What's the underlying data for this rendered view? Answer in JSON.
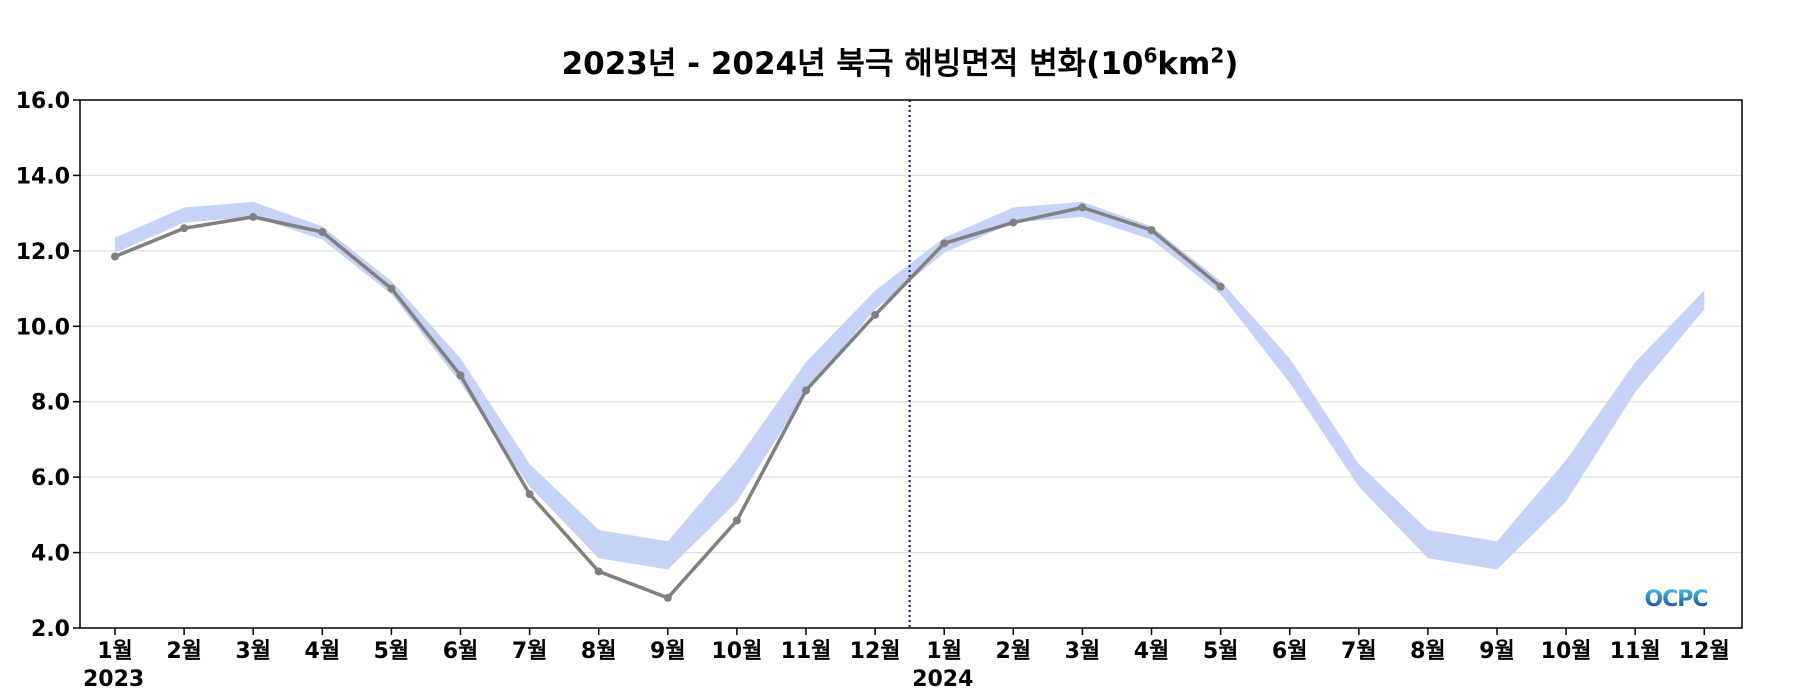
{
  "chart_data": {
    "type": "line",
    "title": {
      "prefix": "2023년 - 2024년 북극 해빙면적 변화(10",
      "exp1": "6",
      "mid": "km",
      "exp2": "2",
      "suffix": ")"
    },
    "xlabel": "",
    "ylabel": "",
    "ylim": [
      2.0,
      16.0
    ],
    "yticks": [
      "16.0",
      "14.0",
      "12.0",
      "10.0",
      "8.0",
      "6.0",
      "4.0",
      "2.0"
    ],
    "ytick_values": [
      16,
      14,
      12,
      10,
      8,
      6,
      4,
      2
    ],
    "categories": [
      "1월",
      "2월",
      "3월",
      "4월",
      "5월",
      "6월",
      "7월",
      "8월",
      "9월",
      "10월",
      "11월",
      "12월",
      "1월",
      "2월",
      "3월",
      "4월",
      "5월",
      "6월",
      "7월",
      "8월",
      "9월",
      "10월",
      "11월",
      "12월"
    ],
    "year_labels": [
      {
        "label": "2023",
        "index": 0
      },
      {
        "label": "2024",
        "index": 12
      }
    ],
    "divider_between": [
      11,
      12
    ],
    "grid": "horizontal",
    "climatology_band": {
      "color": "#c5d3f8",
      "upper": [
        12.35,
        13.15,
        13.3,
        12.65,
        11.2,
        9.15,
        6.35,
        4.6,
        4.3,
        6.45,
        9.05,
        10.95,
        12.35,
        13.15,
        13.3,
        12.65,
        11.2,
        9.15,
        6.35,
        4.6,
        4.3,
        6.45,
        9.05,
        10.95
      ],
      "lower": [
        11.95,
        12.75,
        12.9,
        12.3,
        10.85,
        8.5,
        5.75,
        3.85,
        3.55,
        5.35,
        8.25,
        10.45,
        11.95,
        12.75,
        12.9,
        12.3,
        10.85,
        8.5,
        5.75,
        3.85,
        3.55,
        5.35,
        8.25,
        10.45
      ]
    },
    "series": [
      {
        "color": "#808080",
        "values": [
          11.85,
          12.6,
          12.9,
          12.5,
          11.0,
          8.7,
          5.55,
          3.5,
          2.8,
          4.85,
          8.3,
          10.3,
          12.2,
          12.75,
          13.15,
          12.55,
          11.05,
          null,
          null,
          null,
          null,
          null,
          null,
          null
        ]
      }
    ],
    "watermark": "OCPC"
  }
}
